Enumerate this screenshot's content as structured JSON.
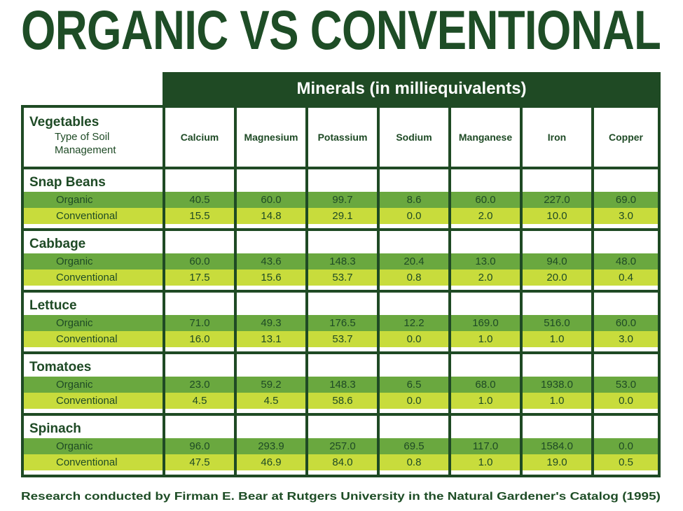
{
  "title": "ORGANIC VS CONVENTIONAL",
  "minerals_header": "Minerals (in milliequivalents)",
  "row_header": {
    "vegetables": "Vegetables",
    "soil_line1": "Type of Soil",
    "soil_line2": "Management"
  },
  "columns": [
    "Calcium",
    "Magnesium",
    "Potassium",
    "Sodium",
    "Manganese",
    "Iron",
    "Copper"
  ],
  "labels": {
    "organic": "Organic",
    "conventional": "Conventional"
  },
  "groups": [
    {
      "name": "Snap Beans",
      "organic": [
        "40.5",
        "60.0",
        "99.7",
        "8.6",
        "60.0",
        "227.0",
        "69.0"
      ],
      "conventional": [
        "15.5",
        "14.8",
        "29.1",
        "0.0",
        "2.0",
        "10.0",
        "3.0"
      ]
    },
    {
      "name": "Cabbage",
      "organic": [
        "60.0",
        "43.6",
        "148.3",
        "20.4",
        "13.0",
        "94.0",
        "48.0"
      ],
      "conventional": [
        "17.5",
        "15.6",
        "53.7",
        "0.8",
        "2.0",
        "20.0",
        "0.4"
      ]
    },
    {
      "name": "Lettuce",
      "organic": [
        "71.0",
        "49.3",
        "176.5",
        "12.2",
        "169.0",
        "516.0",
        "60.0"
      ],
      "conventional": [
        "16.0",
        "13.1",
        "53.7",
        "0.0",
        "1.0",
        "1.0",
        "3.0"
      ]
    },
    {
      "name": "Tomatoes",
      "organic": [
        "23.0",
        "59.2",
        "148.3",
        "6.5",
        "68.0",
        "1938.0",
        "53.0"
      ],
      "conventional": [
        "4.5",
        "4.5",
        "58.6",
        "0.0",
        "1.0",
        "1.0",
        "0.0"
      ]
    },
    {
      "name": "Spinach",
      "organic": [
        "96.0",
        "293.9",
        "257.0",
        "69.5",
        "117.0",
        "1584.0",
        "0.0"
      ],
      "conventional": [
        "47.5",
        "46.9",
        "84.0",
        "0.8",
        "1.0",
        "19.0",
        "0.5"
      ]
    }
  ],
  "footer": "Research conducted by Firman E. Bear at Rutgers University in the Natural Gardener's Catalog (1995)",
  "colors": {
    "dark_green": "#1f4a24",
    "organic_row": "#6aa83f",
    "conventional_row": "#c8dc3c"
  }
}
